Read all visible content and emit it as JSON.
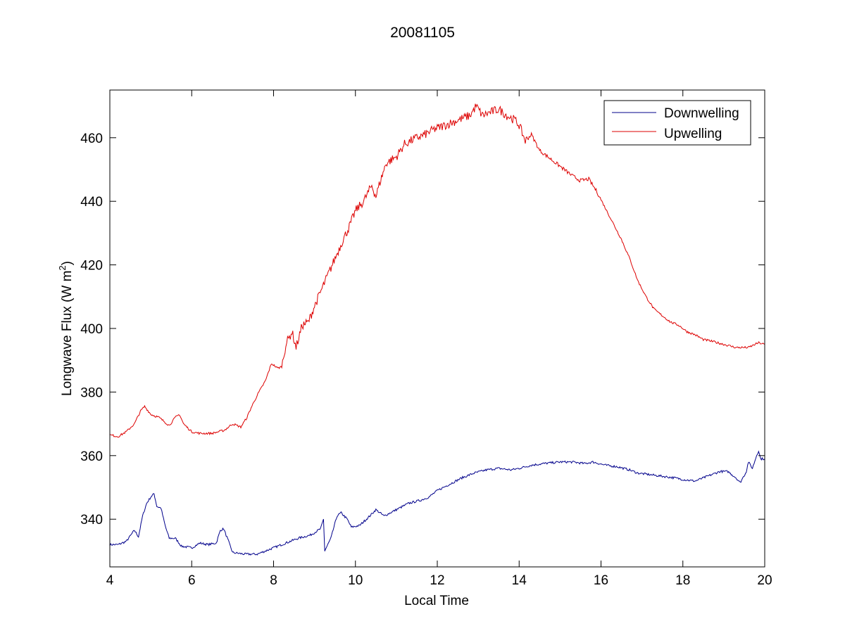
{
  "chart_data": {
    "type": "line",
    "title": "20081105",
    "xlabel": "Local Time",
    "ylabel_main": "Longwave Flux (W m",
    "ylabel_sup": "2",
    "ylabel_end": ")",
    "xlim": [
      4,
      20
    ],
    "ylim": [
      325,
      475
    ],
    "xticks": [
      4,
      6,
      8,
      10,
      12,
      14,
      16,
      18,
      20
    ],
    "yticks": [
      340,
      360,
      380,
      400,
      420,
      440,
      460
    ],
    "grid": false,
    "legend_position": "top-right",
    "series": [
      {
        "name": "Downwelling",
        "color": "#00008b",
        "points": [
          [
            4.0,
            332
          ],
          [
            4.2,
            332
          ],
          [
            4.4,
            333
          ],
          [
            4.6,
            336.5
          ],
          [
            4.7,
            334.5
          ],
          [
            4.8,
            341
          ],
          [
            4.9,
            345
          ],
          [
            5.0,
            347
          ],
          [
            5.08,
            348
          ],
          [
            5.15,
            344
          ],
          [
            5.25,
            343.5
          ],
          [
            5.35,
            338
          ],
          [
            5.45,
            334
          ],
          [
            5.6,
            334
          ],
          [
            5.75,
            331.5
          ],
          [
            6.0,
            331
          ],
          [
            6.2,
            332.5
          ],
          [
            6.4,
            332
          ],
          [
            6.6,
            332.5
          ],
          [
            6.7,
            336.5
          ],
          [
            6.78,
            337
          ],
          [
            6.9,
            333
          ],
          [
            7.0,
            329.5
          ],
          [
            7.3,
            329
          ],
          [
            7.6,
            329
          ],
          [
            7.8,
            330
          ],
          [
            8.0,
            331
          ],
          [
            8.3,
            332.5
          ],
          [
            8.6,
            334
          ],
          [
            8.9,
            335
          ],
          [
            9.15,
            337
          ],
          [
            9.22,
            340
          ],
          [
            9.25,
            330
          ],
          [
            9.4,
            334
          ],
          [
            9.55,
            341
          ],
          [
            9.65,
            342
          ],
          [
            9.8,
            340
          ],
          [
            9.9,
            337.5
          ],
          [
            10.1,
            338
          ],
          [
            10.35,
            341
          ],
          [
            10.5,
            343
          ],
          [
            10.7,
            341
          ],
          [
            11.0,
            343
          ],
          [
            11.3,
            345
          ],
          [
            11.6,
            346
          ],
          [
            11.8,
            347
          ],
          [
            12.0,
            349
          ],
          [
            12.3,
            351
          ],
          [
            12.6,
            353
          ],
          [
            12.9,
            354.5
          ],
          [
            13.2,
            355.5
          ],
          [
            13.5,
            356
          ],
          [
            13.8,
            355.5
          ],
          [
            14.0,
            356
          ],
          [
            14.3,
            357
          ],
          [
            14.6,
            357.5
          ],
          [
            15.0,
            358
          ],
          [
            15.3,
            358
          ],
          [
            15.6,
            357.5
          ],
          [
            15.8,
            358
          ],
          [
            16.1,
            357
          ],
          [
            16.4,
            356.5
          ],
          [
            16.7,
            355.5
          ],
          [
            16.9,
            354.5
          ],
          [
            17.2,
            354
          ],
          [
            17.5,
            353.5
          ],
          [
            17.8,
            353
          ],
          [
            18.0,
            352.5
          ],
          [
            18.3,
            352
          ],
          [
            18.6,
            353.5
          ],
          [
            18.9,
            355
          ],
          [
            19.1,
            355
          ],
          [
            19.3,
            353
          ],
          [
            19.4,
            351.5
          ],
          [
            19.55,
            355
          ],
          [
            19.6,
            358
          ],
          [
            19.7,
            356
          ],
          [
            19.8,
            360
          ],
          [
            19.85,
            361.5
          ],
          [
            19.9,
            359
          ],
          [
            20.0,
            359
          ]
        ]
      },
      {
        "name": "Upwelling",
        "color": "#dd0000",
        "points": [
          [
            4.0,
            366.5
          ],
          [
            4.2,
            366
          ],
          [
            4.4,
            367.5
          ],
          [
            4.6,
            370
          ],
          [
            4.75,
            374
          ],
          [
            4.85,
            375.5
          ],
          [
            5.0,
            373
          ],
          [
            5.2,
            372
          ],
          [
            5.45,
            369.5
          ],
          [
            5.6,
            372
          ],
          [
            5.7,
            373
          ],
          [
            5.8,
            370
          ],
          [
            6.0,
            367.5
          ],
          [
            6.2,
            367
          ],
          [
            6.5,
            367
          ],
          [
            6.8,
            368
          ],
          [
            7.0,
            370
          ],
          [
            7.2,
            369
          ],
          [
            7.35,
            372
          ],
          [
            7.45,
            375
          ],
          [
            7.6,
            379
          ],
          [
            7.8,
            383.5
          ],
          [
            7.95,
            389
          ],
          [
            8.1,
            387.5
          ],
          [
            8.2,
            388
          ],
          [
            8.3,
            395
          ],
          [
            8.45,
            399
          ],
          [
            8.55,
            394
          ],
          [
            8.7,
            401
          ],
          [
            8.85,
            402
          ],
          [
            9.0,
            407
          ],
          [
            9.2,
            413
          ],
          [
            9.5,
            422
          ],
          [
            9.7,
            428
          ],
          [
            9.85,
            432
          ],
          [
            10.0,
            437
          ],
          [
            10.2,
            440
          ],
          [
            10.4,
            445
          ],
          [
            10.5,
            441.5
          ],
          [
            10.6,
            446
          ],
          [
            10.75,
            452
          ],
          [
            11.0,
            454
          ],
          [
            11.2,
            458
          ],
          [
            11.5,
            460
          ],
          [
            11.7,
            461
          ],
          [
            11.9,
            462.5
          ],
          [
            12.1,
            463.5
          ],
          [
            12.4,
            465
          ],
          [
            12.6,
            466
          ],
          [
            12.8,
            467
          ],
          [
            12.95,
            470
          ],
          [
            13.1,
            467
          ],
          [
            13.3,
            468
          ],
          [
            13.5,
            469
          ],
          [
            13.7,
            467
          ],
          [
            13.9,
            465.5
          ],
          [
            14.0,
            464
          ],
          [
            14.15,
            459
          ],
          [
            14.3,
            461
          ],
          [
            14.5,
            456
          ],
          [
            14.7,
            454
          ],
          [
            14.9,
            452
          ],
          [
            15.1,
            450
          ],
          [
            15.3,
            448
          ],
          [
            15.5,
            446.5
          ],
          [
            15.7,
            447
          ],
          [
            15.9,
            443
          ],
          [
            16.1,
            438
          ],
          [
            16.3,
            433
          ],
          [
            16.5,
            428
          ],
          [
            16.7,
            422
          ],
          [
            16.9,
            415
          ],
          [
            17.1,
            410
          ],
          [
            17.3,
            406
          ],
          [
            17.5,
            404
          ],
          [
            17.7,
            402
          ],
          [
            17.9,
            401
          ],
          [
            18.1,
            399
          ],
          [
            18.3,
            398
          ],
          [
            18.5,
            396.5
          ],
          [
            18.7,
            396
          ],
          [
            19.0,
            395
          ],
          [
            19.3,
            394
          ],
          [
            19.6,
            394
          ],
          [
            19.85,
            395.5
          ],
          [
            20.0,
            395
          ]
        ]
      }
    ]
  }
}
